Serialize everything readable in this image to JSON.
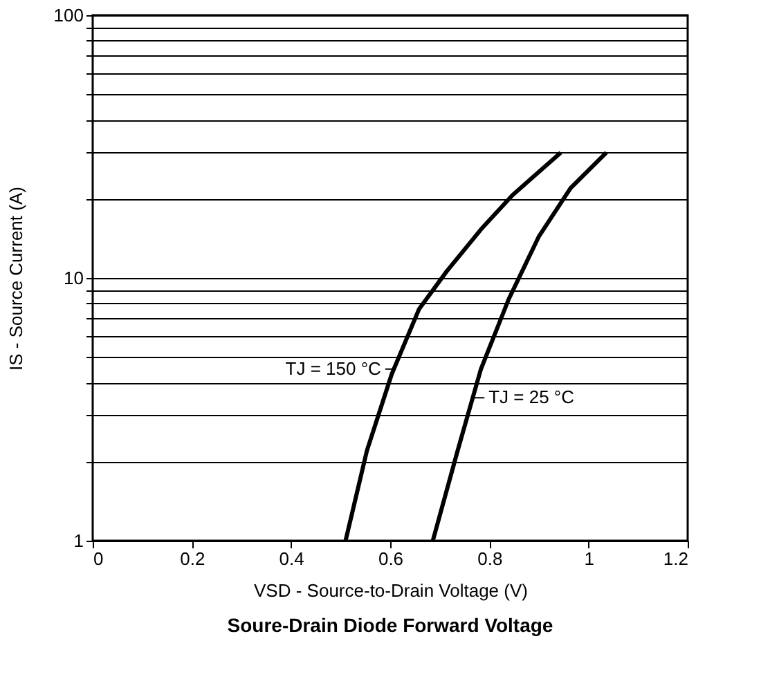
{
  "chart_data": {
    "type": "line",
    "title": "Soure-Drain Diode Forward Voltage",
    "xlabel": "VSD - Source-to-Drain Voltage (V)",
    "ylabel": "IS - Source Current (A)",
    "series": [
      {
        "color": "#000000",
        "x": [
          0.51,
          0.553,
          0.603,
          0.658,
          0.714,
          0.783,
          0.847,
          0.944
        ],
        "values": [
          1,
          2.2,
          4.3,
          7.6,
          10.6,
          15.3,
          20.7,
          30
        ]
      },
      {
        "color": "#000000",
        "x": [
          0.686,
          0.736,
          0.783,
          0.839,
          0.9,
          0.964,
          1.036
        ],
        "values": [
          1,
          2.2,
          4.5,
          8.3,
          14.4,
          22,
          30
        ]
      }
    ],
    "annotations": [
      {
        "text": "TJ = 150 °C",
        "x": 0.61,
        "y": 4.5
      },
      {
        "text": "TJ = 25 °C",
        "x": 0.77,
        "y": 3.5
      }
    ],
    "xlim": [
      0,
      1.2
    ],
    "xticks": [
      0,
      0.2,
      0.4,
      0.6,
      0.8,
      1,
      1.2
    ],
    "ylim": [
      1,
      100
    ],
    "yticks": [
      1,
      {
        "value": 2,
        "label": null
      },
      {
        "value": 3,
        "label": null
      },
      {
        "value": 4,
        "label": null
      },
      {
        "value": 5,
        "label": null
      },
      {
        "value": 6,
        "label": null
      },
      {
        "value": 7,
        "label": null
      },
      {
        "value": 8,
        "label": null
      },
      {
        "value": 9,
        "label": null
      },
      10,
      {
        "value": 20,
        "label": null
      },
      {
        "value": 30,
        "label": null
      },
      {
        "value": 40,
        "label": null
      },
      {
        "value": 50,
        "label": null
      },
      {
        "value": 60,
        "label": null
      },
      {
        "value": 70,
        "label": null
      },
      {
        "value": 80,
        "label": null
      },
      {
        "value": 90,
        "label": null
      },
      100
    ],
    "log": "y",
    "grid": "y",
    "marker": "none",
    "line_style": "solid"
  }
}
